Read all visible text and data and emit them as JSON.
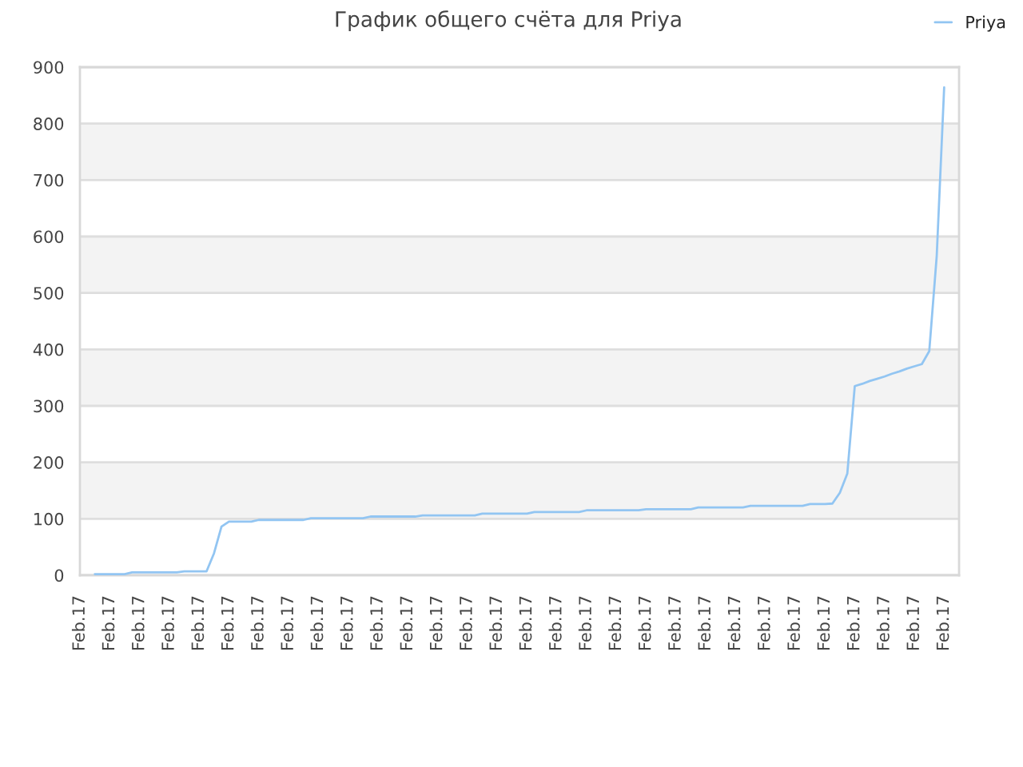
{
  "chart_data": {
    "type": "line",
    "title": "График общего счёта для Priya",
    "categories": [
      "Feb.17",
      null,
      null,
      null,
      "Feb.17",
      null,
      null,
      null,
      "Feb.17",
      null,
      null,
      null,
      "Feb.17",
      null,
      null,
      null,
      "Feb.17",
      null,
      null,
      null,
      "Feb.17",
      null,
      null,
      null,
      "Feb.17",
      null,
      null,
      null,
      "Feb.17",
      null,
      null,
      null,
      "Feb.17",
      null,
      null,
      null,
      "Feb.17",
      null,
      null,
      null,
      "Feb.17",
      null,
      null,
      null,
      "Feb.17",
      null,
      null,
      null,
      "Feb.17",
      null,
      null,
      null,
      "Feb.17",
      null,
      null,
      null,
      "Feb.17",
      null,
      null,
      null,
      "Feb.17",
      null,
      null,
      null,
      "Feb.17",
      null,
      null,
      null,
      "Feb.17",
      null,
      null,
      null,
      "Feb.17",
      null,
      null,
      null,
      "Feb.17",
      null,
      null,
      null,
      "Feb.17",
      null,
      null,
      null,
      "Feb.17",
      null,
      null,
      null,
      "Feb.17",
      null,
      null,
      null,
      "Feb.17",
      null,
      null,
      null,
      "Feb.17",
      null,
      null,
      null,
      "Feb.17",
      null,
      null,
      null,
      "Feb.17",
      null,
      null,
      null,
      "Feb.17",
      null,
      null,
      null,
      "Feb.17",
      null,
      null,
      null,
      "Feb.17",
      null,
      null
    ],
    "series": [
      {
        "name": "Priya",
        "color": "#92c5f2",
        "values": [
          null,
          null,
          2,
          2,
          2,
          2,
          2,
          5,
          5,
          5,
          5,
          5,
          5,
          5,
          7,
          7,
          7,
          7,
          39,
          86,
          95,
          95,
          95,
          95,
          98,
          98,
          98,
          98,
          98,
          98,
          98,
          101,
          101,
          101,
          101,
          101,
          101,
          101,
          101,
          104,
          104,
          104,
          104,
          104,
          104,
          104,
          106,
          106,
          106,
          106,
          106,
          106,
          106,
          106,
          109,
          109,
          109,
          109,
          109,
          109,
          109,
          112,
          112,
          112,
          112,
          112,
          112,
          112,
          115,
          115,
          115,
          115,
          115,
          115,
          115,
          115,
          117,
          117,
          117,
          117,
          117,
          117,
          117,
          120,
          120,
          120,
          120,
          120,
          120,
          120,
          123,
          123,
          123,
          123,
          123,
          123,
          123,
          123,
          126,
          126,
          126,
          127,
          146,
          180,
          335,
          339,
          344,
          348,
          352,
          357,
          361,
          366,
          370,
          374,
          397,
          565,
          864,
          null,
          null
        ]
      }
    ],
    "ylim": [
      0,
      900
    ],
    "yticks": [
      0,
      100,
      200,
      300,
      400,
      500,
      600,
      700,
      800,
      900
    ],
    "grid": "y",
    "legend": "top right"
  }
}
